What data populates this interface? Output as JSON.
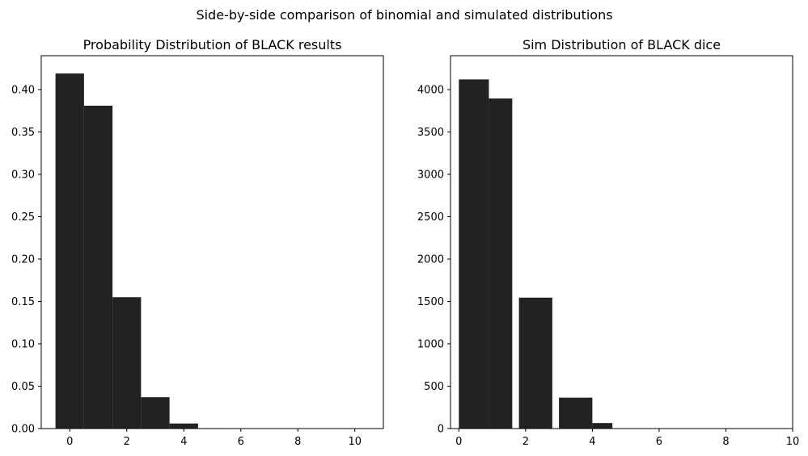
{
  "figure": {
    "suptitle": "Side-by-side comparison of binomial and simulated distributions"
  },
  "chart_data": [
    {
      "type": "bar",
      "title": "Probability Distribution of BLACK results",
      "xlabel": "",
      "ylabel": "",
      "color": "#222222",
      "xlim": [
        -1,
        11
      ],
      "ylim": [
        0,
        0.44
      ],
      "xticks": [
        0,
        2,
        4,
        6,
        8,
        10
      ],
      "xtick_labels": [
        "0",
        "2",
        "4",
        "6",
        "8",
        "10"
      ],
      "yticks": [
        0,
        0.05,
        0.1,
        0.15,
        0.2,
        0.25,
        0.3,
        0.35,
        0.4
      ],
      "ytick_labels": [
        "0.00",
        "0.05",
        "0.10",
        "0.15",
        "0.20",
        "0.25",
        "0.30",
        "0.35",
        "0.40"
      ],
      "bars": [
        {
          "x0": -0.5,
          "x1": 0.5,
          "value": 0.419
        },
        {
          "x0": 0.5,
          "x1": 1.5,
          "value": 0.381
        },
        {
          "x0": 1.5,
          "x1": 2.5,
          "value": 0.155
        },
        {
          "x0": 2.5,
          "x1": 3.5,
          "value": 0.037
        },
        {
          "x0": 3.5,
          "x1": 4.5,
          "value": 0.006
        },
        {
          "x0": 4.5,
          "x1": 5.5,
          "value": 0.0005
        },
        {
          "x0": 5.5,
          "x1": 6.5,
          "value": 0.0
        },
        {
          "x0": 6.5,
          "x1": 7.5,
          "value": 0.0
        },
        {
          "x0": 7.5,
          "x1": 8.5,
          "value": 0.0
        },
        {
          "x0": 8.5,
          "x1": 9.5,
          "value": 0.0
        },
        {
          "x0": 9.5,
          "x1": 10.5,
          "value": 0.0
        }
      ]
    },
    {
      "type": "bar",
      "title": "Sim Distribution of BLACK dice",
      "xlabel": "",
      "ylabel": "",
      "color": "#222222",
      "xlim": [
        -0.25,
        10
      ],
      "ylim": [
        0,
        4400
      ],
      "xticks": [
        0,
        2,
        4,
        6,
        8,
        10
      ],
      "xtick_labels": [
        "0",
        "2",
        "4",
        "6",
        "8",
        "10"
      ],
      "yticks": [
        0,
        500,
        1000,
        1500,
        2000,
        2500,
        3000,
        3500,
        4000
      ],
      "ytick_labels": [
        "0",
        "500",
        "1000",
        "1500",
        "2000",
        "2500",
        "3000",
        "3500",
        "4000"
      ],
      "bars": [
        {
          "x0": 0.0,
          "x1": 0.9,
          "value": 4120
        },
        {
          "x0": 0.9,
          "x1": 1.6,
          "value": 3895
        },
        {
          "x0": 1.8,
          "x1": 2.8,
          "value": 1545
        },
        {
          "x0": 3.0,
          "x1": 4.0,
          "value": 365
        },
        {
          "x0": 4.0,
          "x1": 4.6,
          "value": 65
        }
      ]
    }
  ]
}
